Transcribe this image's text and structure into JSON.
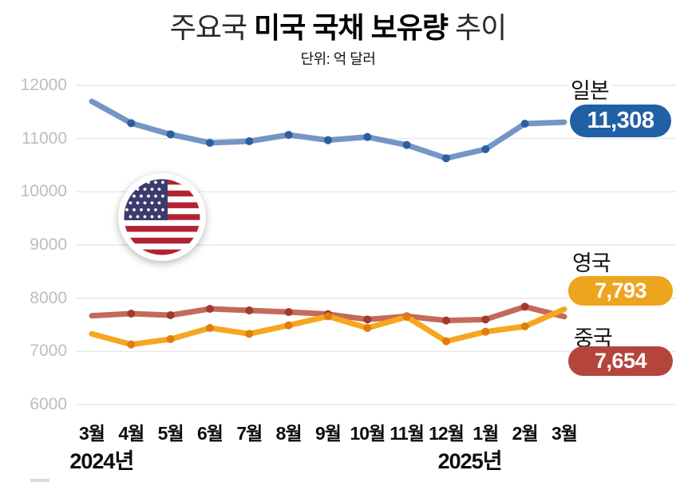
{
  "header": {
    "title_prefix": "주요국 ",
    "title_bold": "미국 국채 보유량",
    "title_suffix": " 추이",
    "subtitle": "단위: 억 달러"
  },
  "chart_data": {
    "type": "line",
    "title": "주요국 미국 국채 보유량 추이",
    "unit_label": "단위: 억 달러",
    "grid": true,
    "ylim": [
      6000,
      12000
    ],
    "y_ticks": [
      12000,
      11000,
      10000,
      9000,
      8000,
      7000,
      6000
    ],
    "x_tick_labels": [
      "3월",
      "4월",
      "5월",
      "6월",
      "7월",
      "8월",
      "9월",
      "10월",
      "11월",
      "12월",
      "1월",
      "2월",
      "3월"
    ],
    "year_labels": [
      {
        "text": "2024년",
        "anchor_index": 0.25
      },
      {
        "text": "2025년",
        "anchor_index": 9.6
      }
    ],
    "series": [
      {
        "name": "일본",
        "line_color": "#7595c5",
        "dot_color": "#2b5f9e",
        "pill_color": "#2160a5",
        "end_value_label": "11,308",
        "values": [
          11700,
          11290,
          11080,
          10920,
          10950,
          11070,
          10970,
          11030,
          10880,
          10630,
          10800,
          11280,
          11308
        ]
      },
      {
        "name": "중국",
        "line_color": "#c46a5b",
        "dot_color": "#a23a2c",
        "pill_color": "#b5453c",
        "end_value_label": "7,654",
        "values": [
          7670,
          7710,
          7680,
          7800,
          7770,
          7740,
          7700,
          7600,
          7660,
          7580,
          7600,
          7840,
          7654
        ]
      },
      {
        "name": "영국",
        "line_color": "#f6a71e",
        "dot_color": "#e07d10",
        "pill_color": "#eda41e",
        "end_value_label": "7,793",
        "values": [
          7330,
          7130,
          7230,
          7440,
          7330,
          7490,
          7660,
          7440,
          7650,
          7190,
          7370,
          7470,
          7793
        ]
      }
    ]
  },
  "flag_icon": {
    "red": "#b22234",
    "blue": "#3c3b6e",
    "white": "#ffffff"
  },
  "grid_color": "#e3e3e3"
}
